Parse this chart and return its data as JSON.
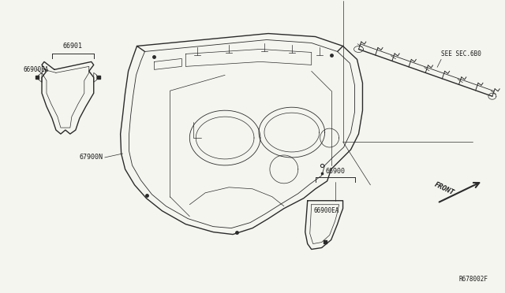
{
  "background_color": "#f5f5f0",
  "line_color": "#2a2a2a",
  "label_color": "#1a1a1a",
  "fig_ref": "R678002F",
  "parts": {
    "main_dash_label": "67900N",
    "top_left_label1": "66901",
    "top_left_label2": "66900EA",
    "top_right_label": "SEE SEC.6B0",
    "bottom_bracket_label1": "66900",
    "bottom_bracket_label2": "66900EA",
    "front_label": "FRONT"
  }
}
